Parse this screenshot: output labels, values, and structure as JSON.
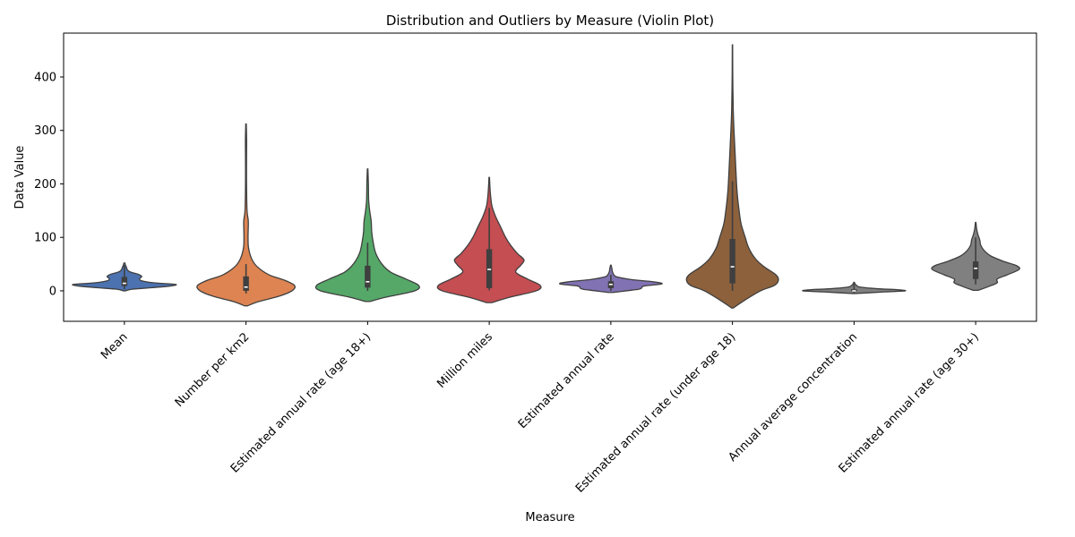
{
  "chart_data": {
    "type": "violin",
    "title": "Distribution and Outliers by Measure (Violin Plot)",
    "xlabel": "Measure",
    "ylabel": "Data Value",
    "ylim": [
      -57,
      482
    ],
    "yticks": [
      0,
      100,
      200,
      300,
      400
    ],
    "grid": false,
    "legend": "none",
    "categories": [
      "Mean",
      "Number per km2",
      "Estimated annual rate (age 18+)",
      "Million miles",
      "Estimated annual rate",
      "Estimated annual rate (under age 18)",
      "Annual average concentration",
      "Estimated annual rate (age 30+)"
    ],
    "series": [
      {
        "color": "#4c72b0",
        "box": {
          "min": 3,
          "q1": 9,
          "median": 14,
          "q3": 26,
          "max": 48
        },
        "density": [
          [
            0,
            0.02
          ],
          [
            3,
            0.15
          ],
          [
            6,
            0.55
          ],
          [
            9,
            0.9
          ],
          [
            12,
            1.0
          ],
          [
            15,
            0.58
          ],
          [
            19,
            0.33
          ],
          [
            23,
            0.3
          ],
          [
            27,
            0.34
          ],
          [
            31,
            0.27
          ],
          [
            35,
            0.12
          ],
          [
            39,
            0.06
          ],
          [
            44,
            0.04
          ],
          [
            48,
            0.02
          ],
          [
            52,
            0.01
          ]
        ]
      },
      {
        "color": "#dd8452",
        "box": {
          "min": -5,
          "q1": 0,
          "median": 7,
          "q3": 27,
          "max": 50
        },
        "density": [
          [
            -28,
            0.03
          ],
          [
            -20,
            0.25
          ],
          [
            -10,
            0.65
          ],
          [
            0,
            0.9
          ],
          [
            10,
            0.95
          ],
          [
            20,
            0.75
          ],
          [
            30,
            0.45
          ],
          [
            45,
            0.22
          ],
          [
            60,
            0.11
          ],
          [
            80,
            0.05
          ],
          [
            100,
            0.04
          ],
          [
            130,
            0.045
          ],
          [
            150,
            0.02
          ],
          [
            200,
            0.01
          ],
          [
            250,
            0.01
          ],
          [
            280,
            0.012
          ],
          [
            312,
            0.005
          ]
        ]
      },
      {
        "color": "#55a868",
        "box": {
          "min": 0,
          "q1": 6,
          "median": 17,
          "q3": 47,
          "max": 90
        },
        "density": [
          [
            -20,
            0.04
          ],
          [
            -12,
            0.35
          ],
          [
            0,
            0.92
          ],
          [
            10,
            1.0
          ],
          [
            22,
            0.75
          ],
          [
            35,
            0.45
          ],
          [
            50,
            0.28
          ],
          [
            70,
            0.16
          ],
          [
            90,
            0.11
          ],
          [
            110,
            0.08
          ],
          [
            130,
            0.07
          ],
          [
            150,
            0.04
          ],
          [
            170,
            0.02
          ],
          [
            200,
            0.015
          ],
          [
            228,
            0.005
          ]
        ]
      },
      {
        "color": "#c44e52",
        "box": {
          "min": 1,
          "q1": 5,
          "median": 40,
          "q3": 78,
          "max": 155
        },
        "density": [
          [
            -22,
            0.05
          ],
          [
            -12,
            0.4
          ],
          [
            0,
            0.92
          ],
          [
            10,
            1.0
          ],
          [
            22,
            0.75
          ],
          [
            35,
            0.52
          ],
          [
            48,
            0.62
          ],
          [
            58,
            0.68
          ],
          [
            70,
            0.55
          ],
          [
            85,
            0.42
          ],
          [
            100,
            0.32
          ],
          [
            120,
            0.22
          ],
          [
            140,
            0.12
          ],
          [
            160,
            0.05
          ],
          [
            185,
            0.02
          ],
          [
            212,
            0.005
          ]
        ]
      },
      {
        "color": "#8172b3",
        "box": {
          "min": 0,
          "q1": 5,
          "median": 12,
          "q3": 18,
          "max": 30
        },
        "density": [
          [
            -3,
            0.05
          ],
          [
            0,
            0.3
          ],
          [
            3,
            0.55
          ],
          [
            5,
            0.6
          ],
          [
            9,
            0.65
          ],
          [
            13,
            1.0
          ],
          [
            17,
            0.82
          ],
          [
            21,
            0.4
          ],
          [
            26,
            0.12
          ],
          [
            30,
            0.06
          ],
          [
            36,
            0.03
          ],
          [
            42,
            0.02
          ],
          [
            48,
            0.005
          ]
        ]
      },
      {
        "color": "#8c613c",
        "box": {
          "min": 0,
          "q1": 14,
          "median": 45,
          "q3": 97,
          "max": 205
        },
        "density": [
          [
            -32,
            0.02
          ],
          [
            -20,
            0.2
          ],
          [
            0,
            0.55
          ],
          [
            10,
            0.82
          ],
          [
            20,
            0.9
          ],
          [
            30,
            0.85
          ],
          [
            45,
            0.62
          ],
          [
            60,
            0.45
          ],
          [
            80,
            0.32
          ],
          [
            100,
            0.25
          ],
          [
            125,
            0.17
          ],
          [
            150,
            0.13
          ],
          [
            175,
            0.1
          ],
          [
            200,
            0.08
          ],
          [
            250,
            0.055
          ],
          [
            300,
            0.03
          ],
          [
            340,
            0.015
          ],
          [
            400,
            0.006
          ],
          [
            460,
            0.003
          ]
        ]
      },
      {
        "color": "#808080",
        "box": {
          "min": -4,
          "q1": -1,
          "median": 0,
          "q3": 3,
          "max": 13
        },
        "density": [
          [
            -5,
            0.03
          ],
          [
            -2,
            0.6
          ],
          [
            0,
            1.0
          ],
          [
            2,
            0.85
          ],
          [
            4,
            0.45
          ],
          [
            7,
            0.12
          ],
          [
            10,
            0.05
          ],
          [
            13,
            0.02
          ],
          [
            16,
            0.005
          ]
        ]
      },
      {
        "color": "#808080",
        "box": {
          "min": 12,
          "q1": 22,
          "median": 42,
          "q3": 55,
          "max": 100
        },
        "density": [
          [
            1,
            0.05
          ],
          [
            8,
            0.25
          ],
          [
            15,
            0.42
          ],
          [
            22,
            0.42
          ],
          [
            30,
            0.62
          ],
          [
            40,
            0.85
          ],
          [
            47,
            0.8
          ],
          [
            55,
            0.55
          ],
          [
            65,
            0.3
          ],
          [
            75,
            0.17
          ],
          [
            85,
            0.1
          ],
          [
            95,
            0.08
          ],
          [
            105,
            0.045
          ],
          [
            115,
            0.02
          ],
          [
            128,
            0.005
          ]
        ]
      }
    ]
  }
}
